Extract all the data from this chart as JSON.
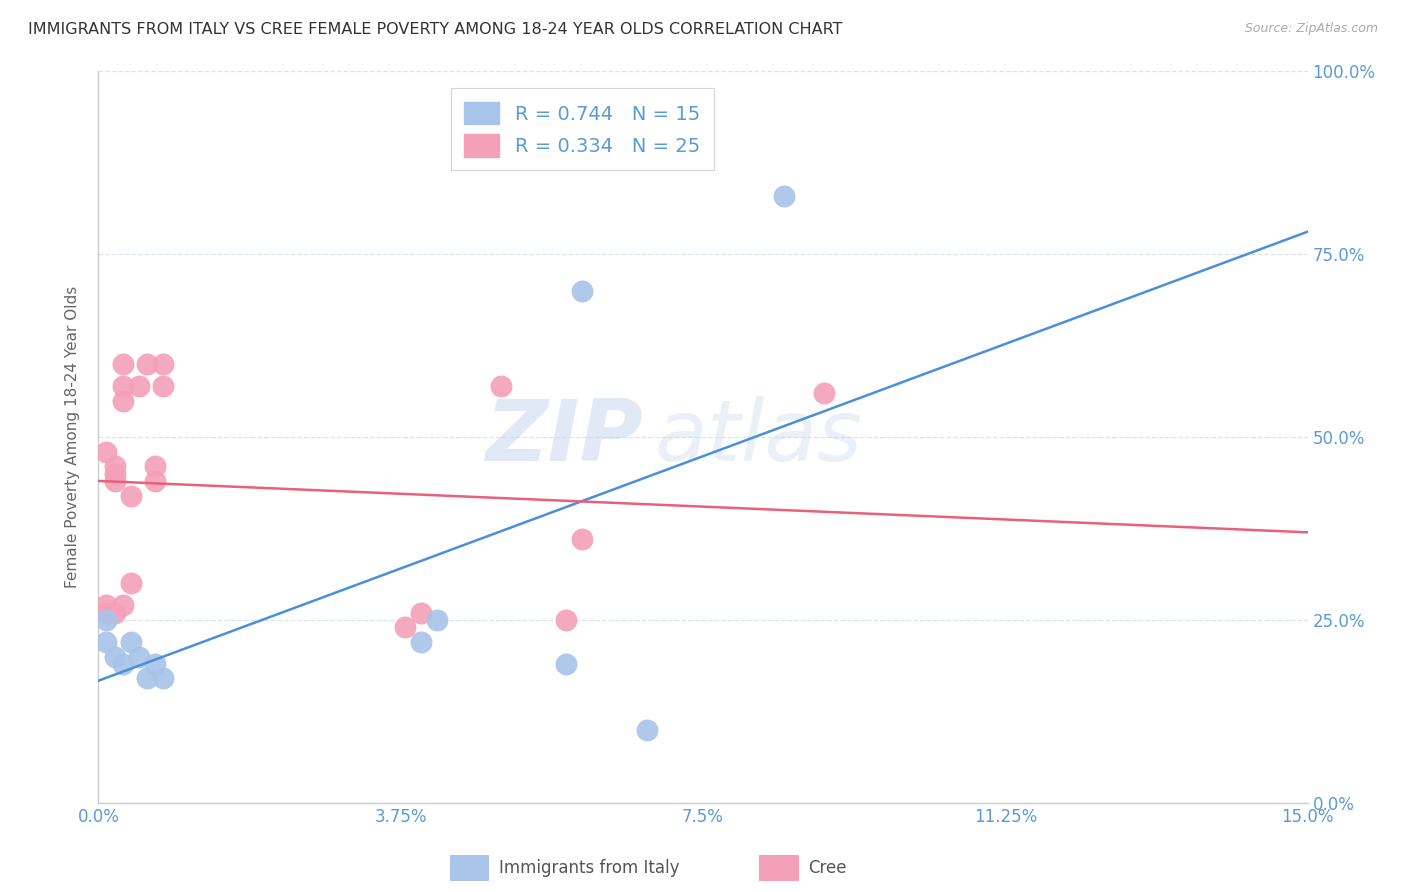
{
  "title": "IMMIGRANTS FROM ITALY VS CREE FEMALE POVERTY AMONG 18-24 YEAR OLDS CORRELATION CHART",
  "source": "Source: ZipAtlas.com",
  "xlabel_ticks": [
    "0.0%",
    "3.75%",
    "7.5%",
    "11.25%",
    "15.0%"
  ],
  "xlabel_vals": [
    0.0,
    0.0375,
    0.075,
    0.1125,
    0.15
  ],
  "ylabel_ticks": [
    "0.0%",
    "25.0%",
    "50.0%",
    "75.0%",
    "100.0%"
  ],
  "ylabel_vals": [
    0.0,
    0.25,
    0.5,
    0.75,
    1.0
  ],
  "xmin": 0.0,
  "xmax": 0.15,
  "ymin": 0.0,
  "ymax": 1.0,
  "italy_color": "#a8c4e8",
  "cree_color": "#f4a0b8",
  "italy_line_color": "#4a90d9",
  "cree_line_color": "#e8607a",
  "italy_R": 0.744,
  "italy_N": 15,
  "cree_R": 0.334,
  "cree_N": 25,
  "axis_color": "#5b9bd5",
  "grid_color": "#d8e4f0",
  "watermark_zip": "ZIP",
  "watermark_atlas": "atlas",
  "italy_scatter_x": [
    0.001,
    0.001,
    0.002,
    0.003,
    0.004,
    0.005,
    0.006,
    0.007,
    0.008,
    0.04,
    0.042,
    0.058,
    0.06,
    0.068,
    0.085
  ],
  "italy_scatter_y": [
    0.25,
    0.22,
    0.2,
    0.19,
    0.22,
    0.2,
    0.17,
    0.19,
    0.17,
    0.22,
    0.25,
    0.19,
    0.7,
    0.1,
    0.83
  ],
  "cree_scatter_x": [
    0.001,
    0.001,
    0.001,
    0.002,
    0.002,
    0.002,
    0.002,
    0.003,
    0.003,
    0.003,
    0.003,
    0.004,
    0.004,
    0.005,
    0.006,
    0.007,
    0.007,
    0.008,
    0.008,
    0.038,
    0.04,
    0.05,
    0.058,
    0.06,
    0.09
  ],
  "cree_scatter_y": [
    0.26,
    0.27,
    0.48,
    0.46,
    0.26,
    0.44,
    0.45,
    0.27,
    0.55,
    0.57,
    0.6,
    0.3,
    0.42,
    0.57,
    0.6,
    0.44,
    0.46,
    0.57,
    0.6,
    0.24,
    0.26,
    0.57,
    0.25,
    0.36,
    0.56
  ]
}
